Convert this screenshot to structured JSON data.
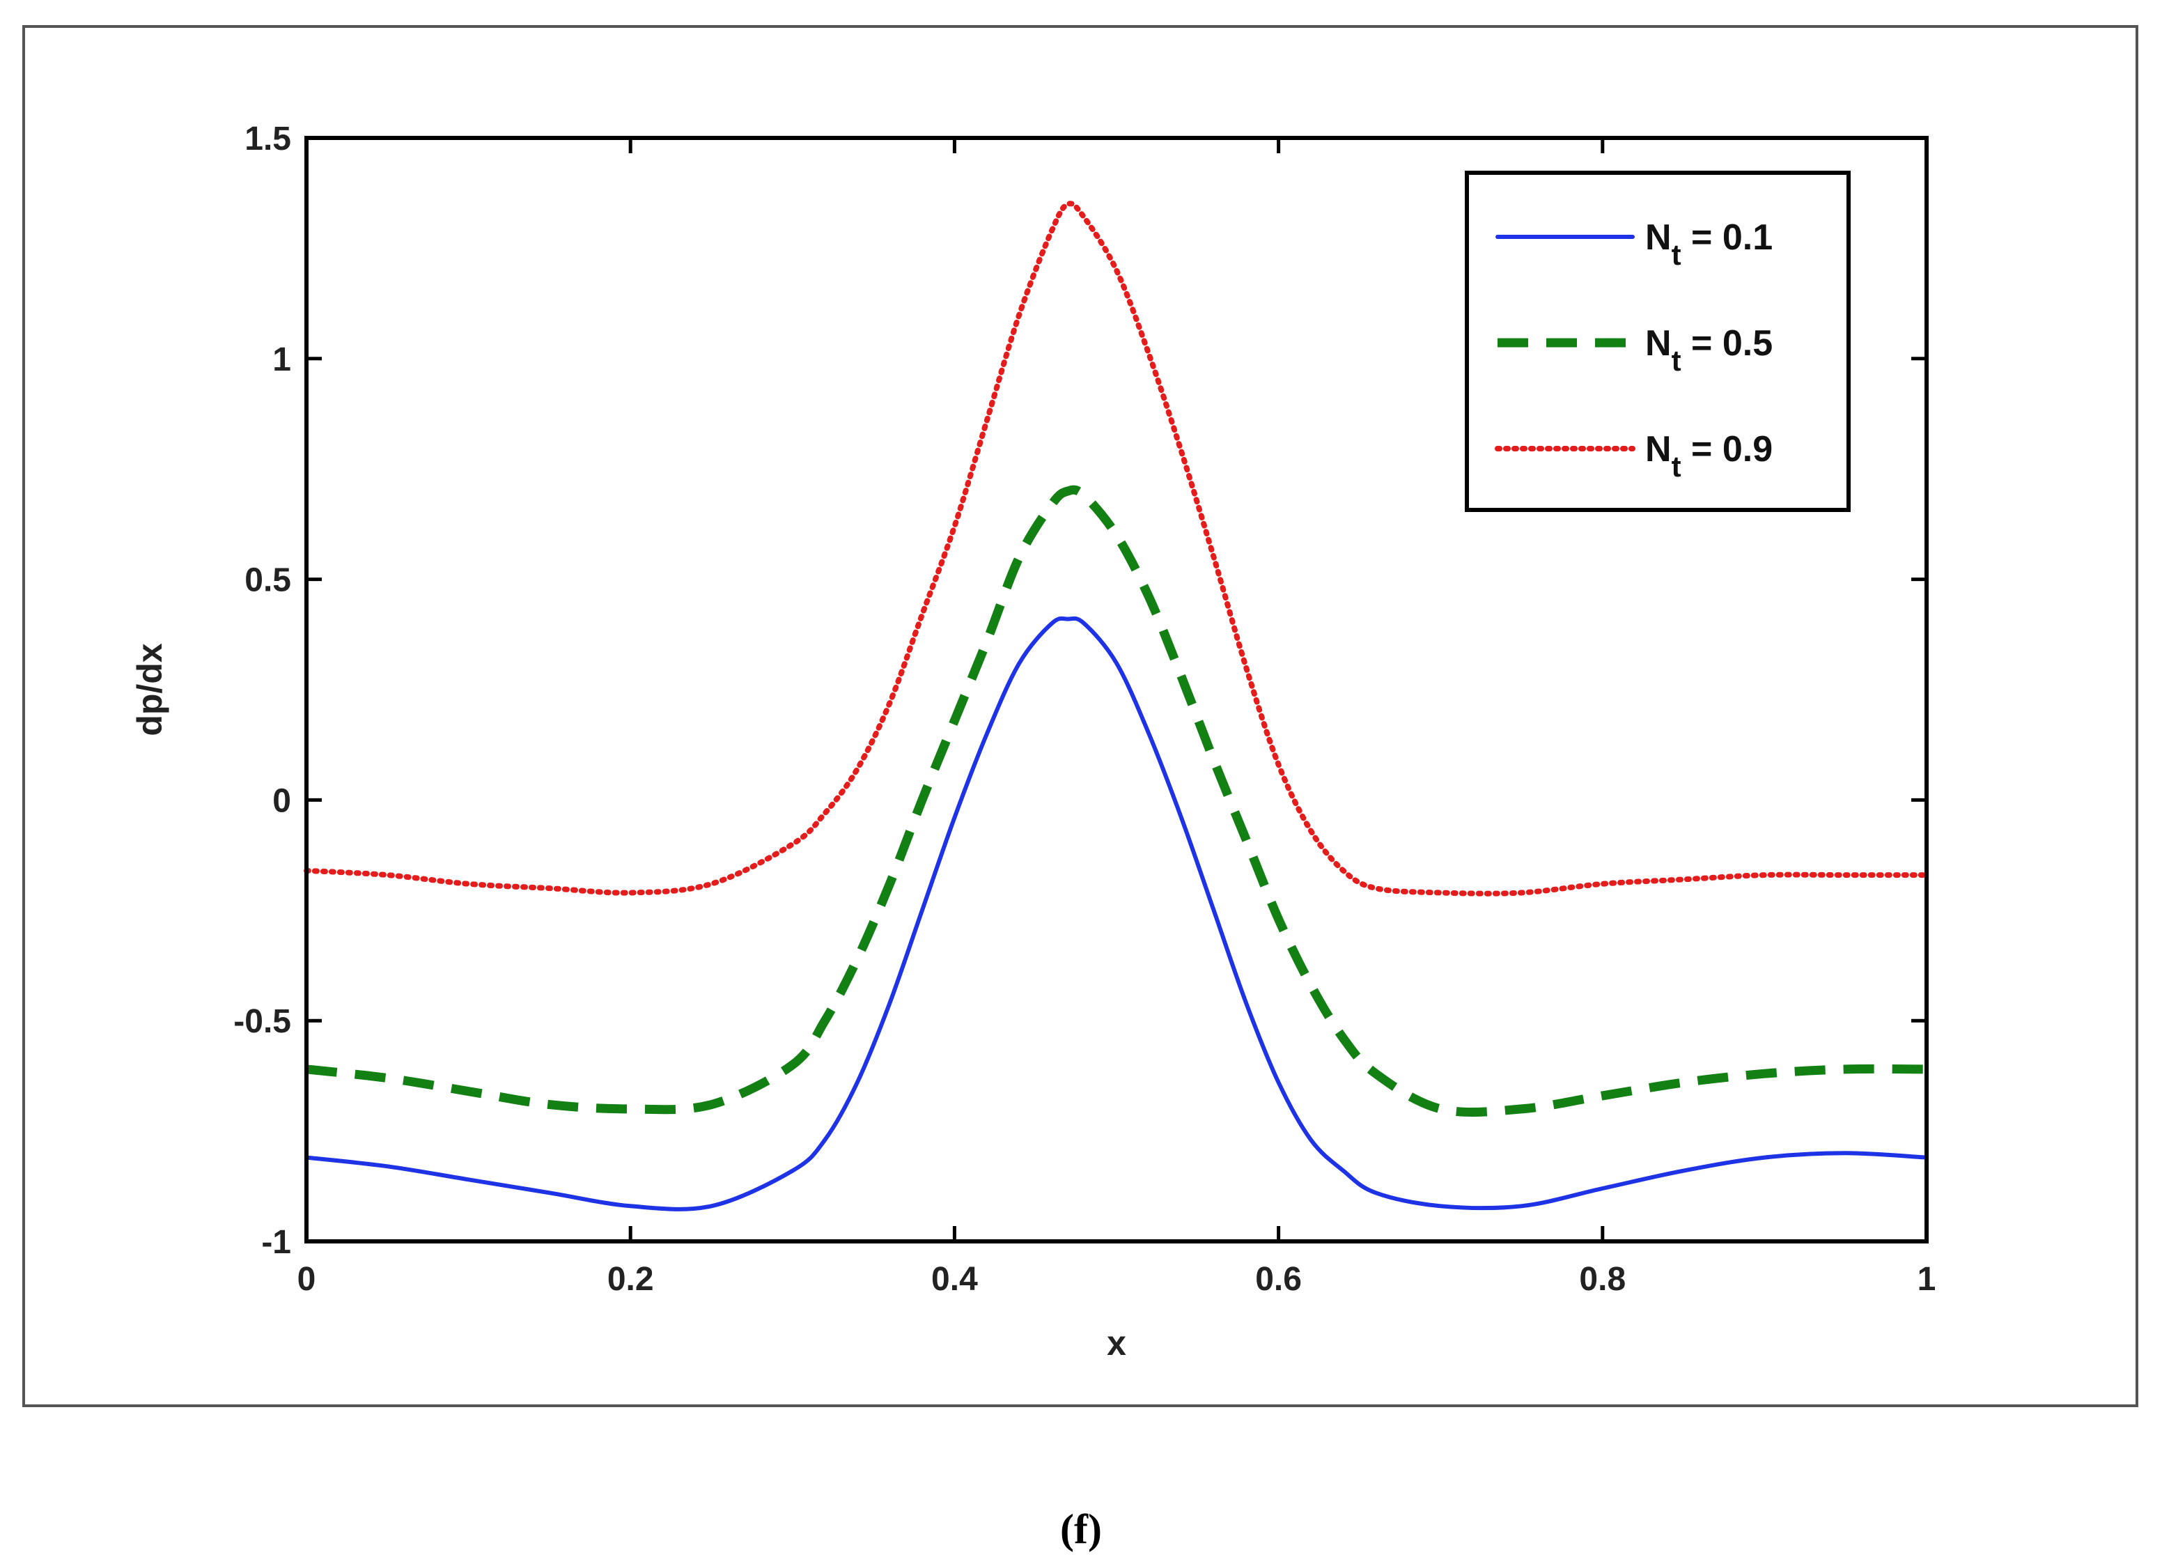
{
  "chart_data": {
    "type": "line",
    "title": "",
    "xlabel": "x",
    "ylabel": "dp/dx",
    "xlim": [
      0,
      1
    ],
    "ylim": [
      -1,
      1.5
    ],
    "xticks": [
      "0",
      "0.2",
      "0.4",
      "0.6",
      "0.8",
      "1"
    ],
    "yticks": [
      "-1",
      "-0.5",
      "0",
      "0.5",
      "1",
      "1.5"
    ],
    "grid": false,
    "legend_position": "top-right",
    "caption": "(f)",
    "x": [
      0,
      0.05,
      0.1,
      0.15,
      0.2,
      0.25,
      0.3,
      0.32,
      0.34,
      0.36,
      0.38,
      0.4,
      0.42,
      0.44,
      0.46,
      0.47,
      0.48,
      0.5,
      0.52,
      0.54,
      0.56,
      0.58,
      0.6,
      0.62,
      0.64,
      0.66,
      0.7,
      0.75,
      0.8,
      0.85,
      0.9,
      0.95,
      1
    ],
    "series": [
      {
        "name": "N",
        "subscript": "t",
        "suffix": " = 0.1",
        "color": "#1f33e6",
        "style": "solid",
        "values": [
          -0.81,
          -0.83,
          -0.86,
          -0.89,
          -0.92,
          -0.92,
          -0.84,
          -0.77,
          -0.64,
          -0.46,
          -0.25,
          -0.04,
          0.15,
          0.31,
          0.4,
          0.41,
          0.4,
          0.31,
          0.15,
          -0.04,
          -0.25,
          -0.46,
          -0.64,
          -0.77,
          -0.84,
          -0.89,
          -0.92,
          -0.92,
          -0.88,
          -0.84,
          -0.81,
          -0.8,
          -0.81
        ]
      },
      {
        "name": "N",
        "subscript": "t",
        "suffix": " = 0.5",
        "color": "#138013",
        "style": "dashed",
        "values": [
          -0.61,
          -0.63,
          -0.66,
          -0.69,
          -0.7,
          -0.69,
          -0.6,
          -0.5,
          -0.36,
          -0.19,
          0.0,
          0.18,
          0.36,
          0.55,
          0.67,
          0.7,
          0.69,
          0.6,
          0.46,
          0.28,
          0.09,
          -0.09,
          -0.27,
          -0.42,
          -0.54,
          -0.62,
          -0.7,
          -0.7,
          -0.67,
          -0.64,
          -0.62,
          -0.61,
          -0.61
        ]
      },
      {
        "name": "N",
        "subscript": "t",
        "suffix": " = 0.9",
        "color": "#e51c1c",
        "style": "dotted",
        "values": [
          -0.16,
          -0.17,
          -0.19,
          -0.2,
          -0.21,
          -0.19,
          -0.1,
          -0.03,
          0.07,
          0.22,
          0.42,
          0.62,
          0.86,
          1.1,
          1.29,
          1.35,
          1.32,
          1.2,
          1.01,
          0.79,
          0.55,
          0.3,
          0.08,
          -0.07,
          -0.16,
          -0.2,
          -0.21,
          -0.21,
          -0.19,
          -0.18,
          -0.17,
          -0.17,
          -0.17
        ]
      }
    ]
  }
}
